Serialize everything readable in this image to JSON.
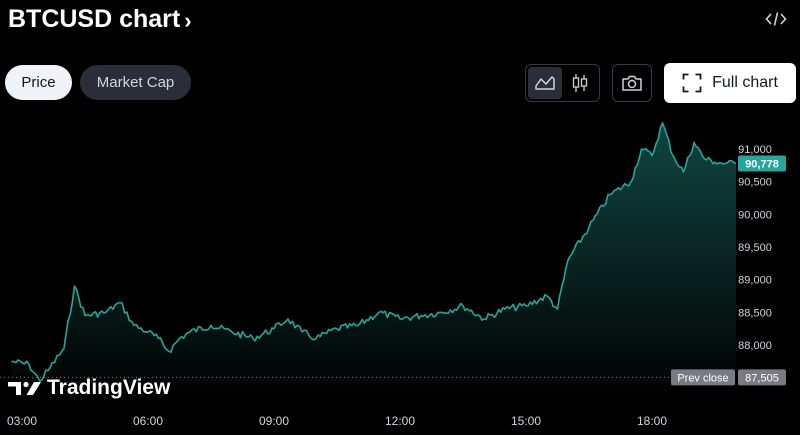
{
  "header": {
    "title": "BTCUSD chart",
    "chevron": "›",
    "embed_icon": "code-icon"
  },
  "tabs": [
    {
      "label": "Price",
      "active": true
    },
    {
      "label": "Market Cap",
      "active": false
    }
  ],
  "toolbar": {
    "area_icon": "area-chart-icon",
    "candle_icon": "candlestick-icon",
    "camera_icon": "camera-icon",
    "full_chart_label": "Full chart",
    "full_chart_icon": "expand-icon"
  },
  "brand": {
    "name": "TradingView"
  },
  "colors": {
    "line": "#26a69a",
    "prev_close": "#787b86",
    "background": "#000000"
  },
  "chart_data": {
    "type": "area",
    "symbol": "BTCUSD",
    "x_labels": [
      "03:00",
      "06:00",
      "09:00",
      "12:00",
      "15:00",
      "18:00"
    ],
    "y_ticks": [
      "91,000",
      "90,500",
      "90,000",
      "89,500",
      "89,000",
      "88,500",
      "88,000"
    ],
    "y_tick_values": [
      91000,
      90500,
      90000,
      89500,
      89000,
      88500,
      88000
    ],
    "ylim": [
      87300,
      91700
    ],
    "last_price": 90778,
    "last_price_label": "90,778",
    "prev_close": 87505,
    "prev_close_label": "87,505",
    "prev_close_text": "Prev close",
    "series": [
      {
        "values": [
          {
            "t": "02:45",
            "v": 87750
          },
          {
            "t": "03:10",
            "v": 87700
          },
          {
            "t": "03:25",
            "v": 87450
          },
          {
            "t": "03:40",
            "v": 87650
          },
          {
            "t": "04:00",
            "v": 87950
          },
          {
            "t": "04:15",
            "v": 88900
          },
          {
            "t": "04:30",
            "v": 88450
          },
          {
            "t": "05:00",
            "v": 88500
          },
          {
            "t": "05:20",
            "v": 88650
          },
          {
            "t": "05:40",
            "v": 88300
          },
          {
            "t": "06:00",
            "v": 88200
          },
          {
            "t": "06:15",
            "v": 88100
          },
          {
            "t": "06:30",
            "v": 87900
          },
          {
            "t": "06:45",
            "v": 88100
          },
          {
            "t": "07:00",
            "v": 88200
          },
          {
            "t": "07:30",
            "v": 88300
          },
          {
            "t": "08:00",
            "v": 88200
          },
          {
            "t": "08:30",
            "v": 88100
          },
          {
            "t": "09:00",
            "v": 88250
          },
          {
            "t": "09:20",
            "v": 88400
          },
          {
            "t": "09:40",
            "v": 88200
          },
          {
            "t": "10:00",
            "v": 88100
          },
          {
            "t": "10:30",
            "v": 88250
          },
          {
            "t": "11:00",
            "v": 88300
          },
          {
            "t": "11:30",
            "v": 88500
          },
          {
            "t": "12:00",
            "v": 88400
          },
          {
            "t": "12:30",
            "v": 88450
          },
          {
            "t": "13:00",
            "v": 88500
          },
          {
            "t": "13:30",
            "v": 88600
          },
          {
            "t": "14:00",
            "v": 88400
          },
          {
            "t": "14:30",
            "v": 88550
          },
          {
            "t": "15:00",
            "v": 88600
          },
          {
            "t": "15:30",
            "v": 88750
          },
          {
            "t": "15:45",
            "v": 88550
          },
          {
            "t": "16:00",
            "v": 89300
          },
          {
            "t": "16:30",
            "v": 89800
          },
          {
            "t": "17:00",
            "v": 90300
          },
          {
            "t": "17:30",
            "v": 90500
          },
          {
            "t": "17:45",
            "v": 91000
          },
          {
            "t": "18:00",
            "v": 90900
          },
          {
            "t": "18:15",
            "v": 91400
          },
          {
            "t": "18:30",
            "v": 90900
          },
          {
            "t": "18:45",
            "v": 90650
          },
          {
            "t": "19:00",
            "v": 91100
          },
          {
            "t": "19:15",
            "v": 90850
          },
          {
            "t": "19:30",
            "v": 90800
          },
          {
            "t": "19:45",
            "v": 90780
          },
          {
            "t": "20:00",
            "v": 90778
          }
        ]
      }
    ]
  }
}
